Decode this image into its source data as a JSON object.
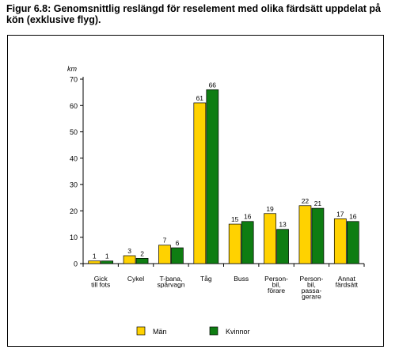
{
  "title": "Figur 6.8: Genomsnittlig reslängd för reselement med olika färdsätt uppdelat på kön (exklusive flyg).",
  "chart_data": {
    "type": "bar",
    "ylabel": "km",
    "ylim": [
      0,
      70
    ],
    "yticks": [
      0,
      10,
      20,
      30,
      40,
      50,
      60,
      70
    ],
    "grid": false,
    "legend_position": "bottom",
    "categories": [
      [
        "Gick",
        "till fots"
      ],
      [
        "Cykel"
      ],
      [
        "T-bana,",
        "spårvagn"
      ],
      [
        "Tåg"
      ],
      [
        "Buss"
      ],
      [
        "Person-",
        "bil,",
        "förare"
      ],
      [
        "Person-",
        "bil,",
        "passa-",
        "gerare"
      ],
      [
        "Annat",
        "färdsätt"
      ]
    ],
    "series": [
      {
        "name": "Män",
        "color": "#ffd200",
        "values": [
          1,
          3,
          7,
          61,
          15,
          19,
          22,
          17
        ]
      },
      {
        "name": "Kvinnor",
        "color": "#0e7d12",
        "values": [
          1,
          2,
          6,
          66,
          16,
          13,
          21,
          16
        ]
      }
    ]
  }
}
